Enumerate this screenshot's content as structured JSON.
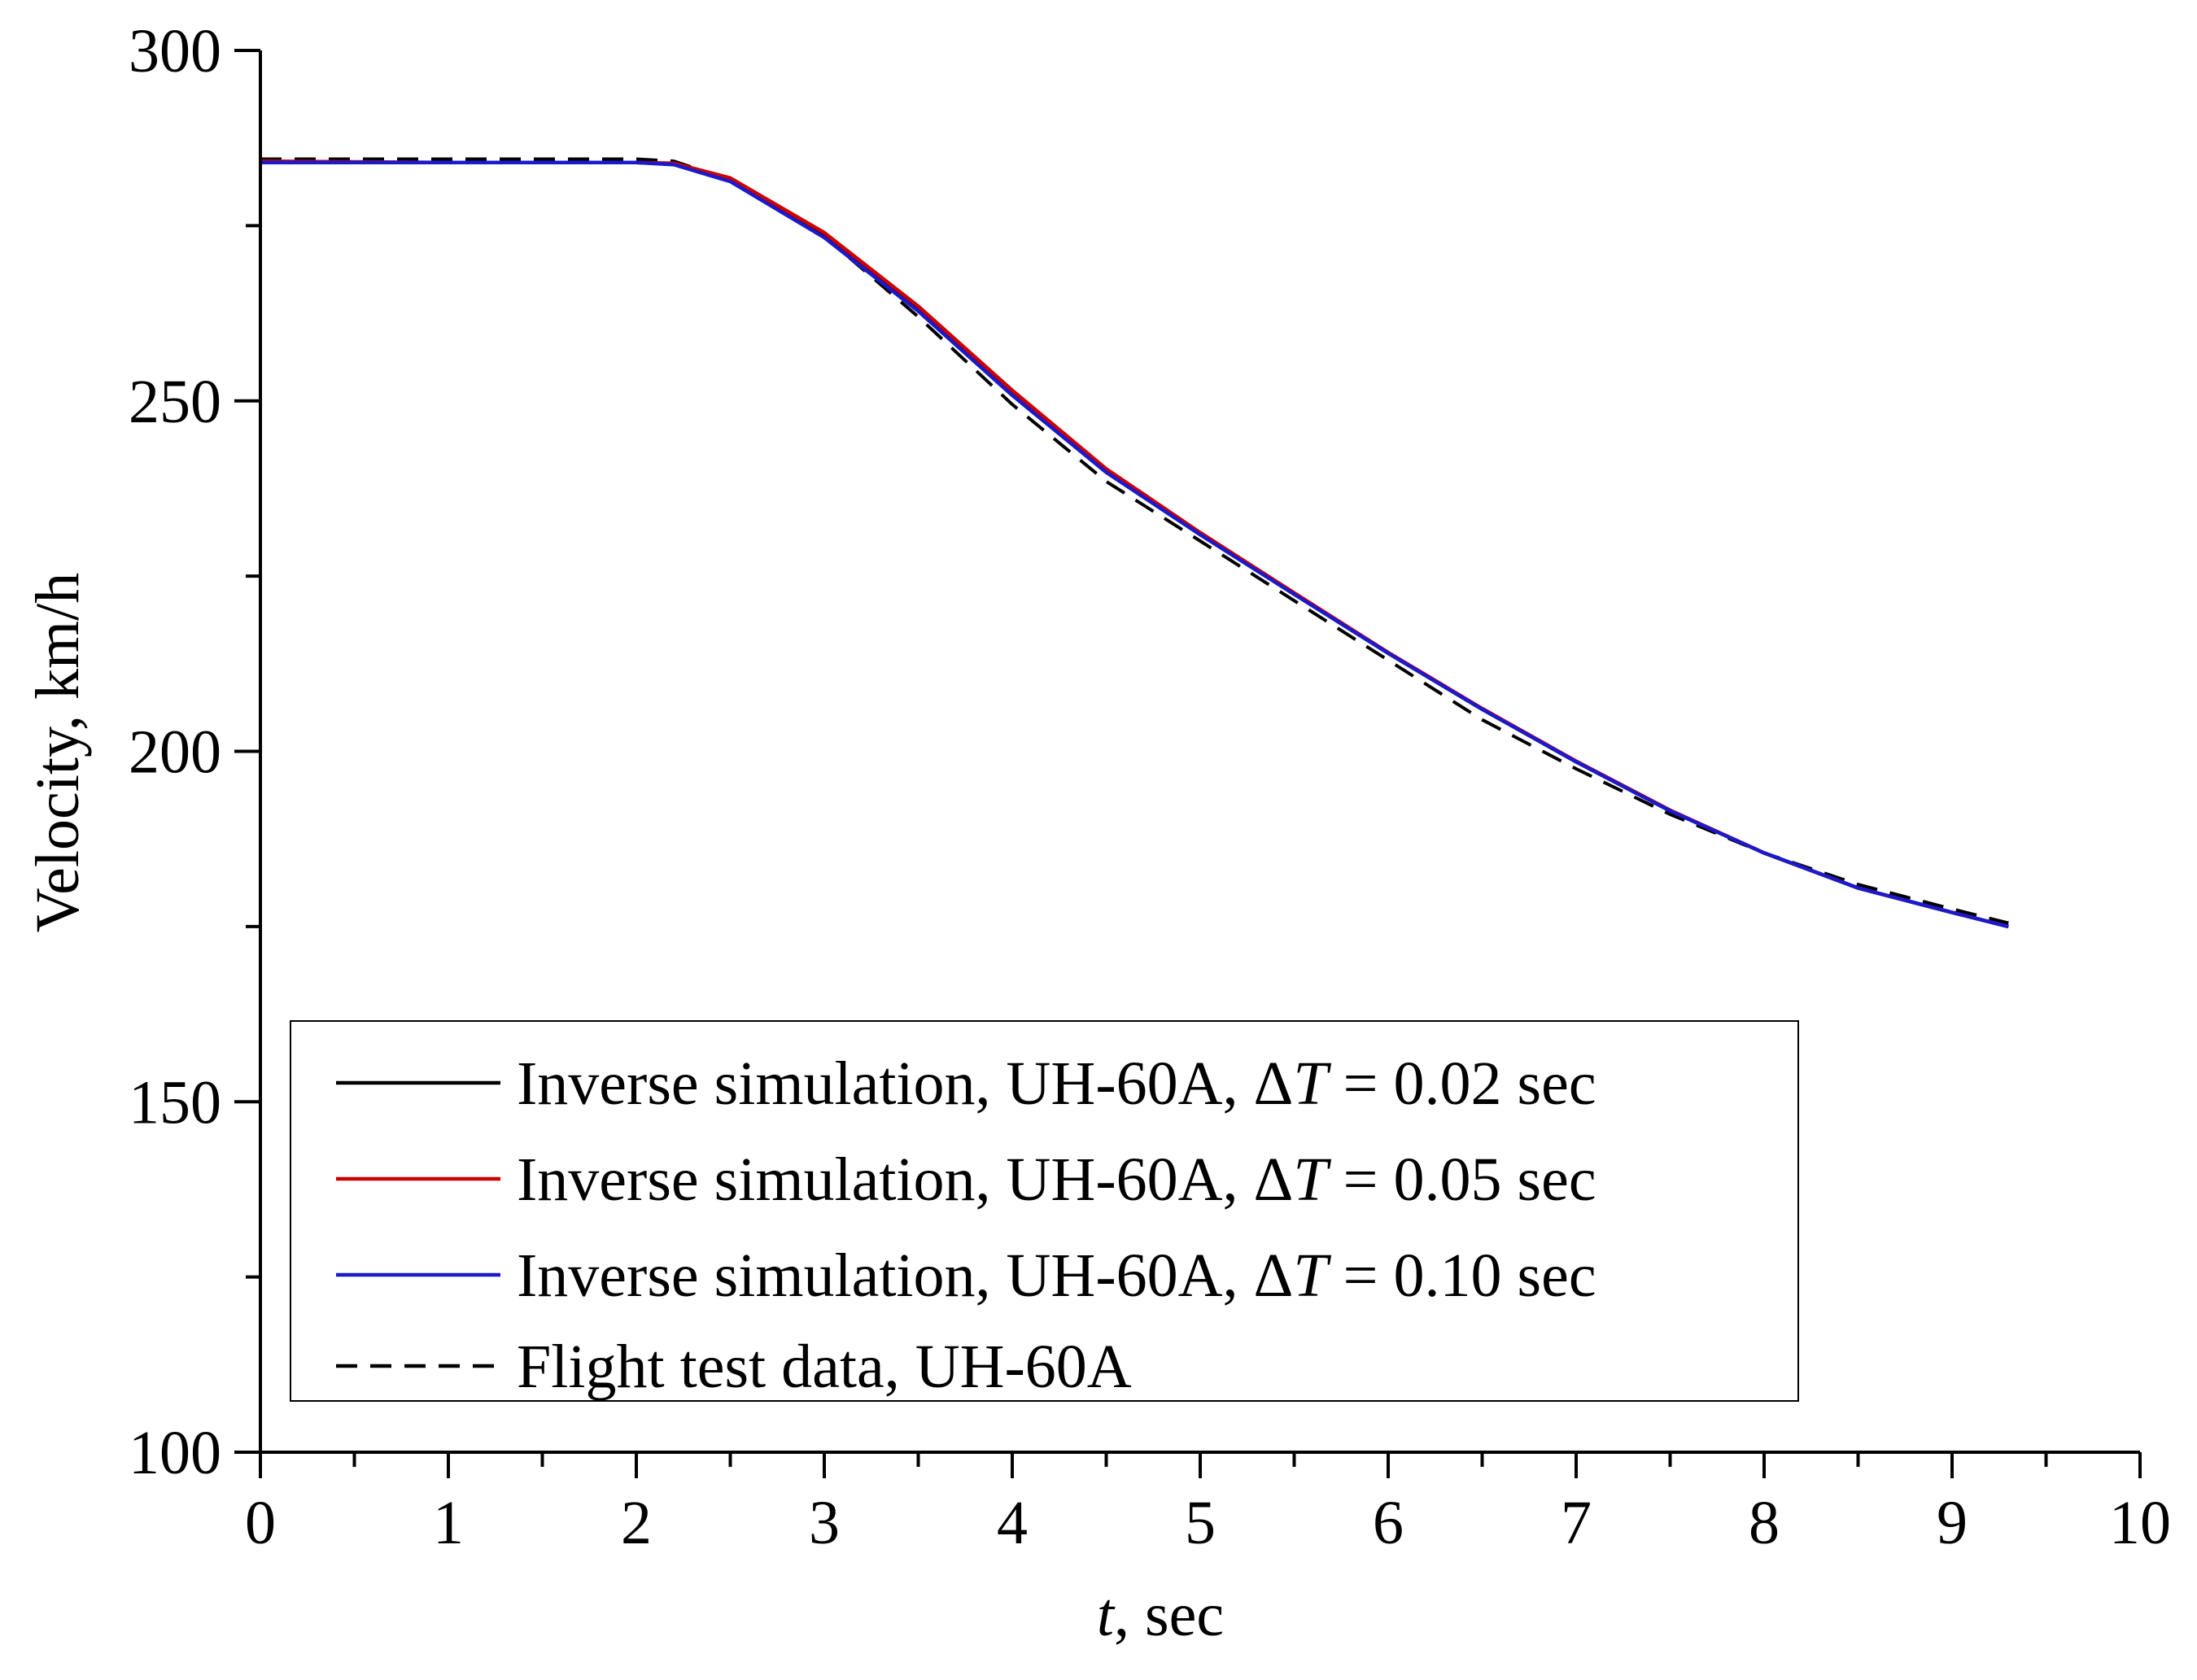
{
  "chart_data": {
    "type": "line",
    "title": "",
    "xlabel": "t",
    "xlabel_suffix": ", sec",
    "ylabel": "Velocity, km/h",
    "xlim": [
      0,
      10
    ],
    "ylim": [
      100,
      300
    ],
    "x_major_ticks": [
      0,
      1,
      2,
      3,
      4,
      5,
      6,
      7,
      8,
      9,
      10
    ],
    "x_tick_labels": [
      "0",
      "1",
      "2",
      "3",
      "4",
      "5",
      "6",
      "7",
      "8",
      "9",
      "10"
    ],
    "y_major_ticks": [
      100,
      150,
      200,
      250,
      300
    ],
    "y_tick_labels": [
      "100",
      "150",
      "200",
      "250",
      "300"
    ],
    "y_minor_ticks": [
      125,
      175,
      225,
      275
    ],
    "grid": false,
    "legend_position": "bottom-left",
    "legend": [
      {
        "prefix": "Inverse simulation, UH-60A, Δ",
        "symbol": "T",
        "suffix": " = 0.02 sec",
        "color": "#000000",
        "dash": "solid"
      },
      {
        "prefix": "Inverse simulation, UH-60A, Δ",
        "symbol": "T",
        "suffix": " = 0.05 sec",
        "color": "#cc0000",
        "dash": "solid"
      },
      {
        "prefix": "Inverse simulation, UH-60A, Δ",
        "symbol": "T",
        "suffix": " = 0.10 sec",
        "color": "#1a1acc",
        "dash": "solid"
      },
      {
        "prefix": "Flight test data, UH-60A",
        "symbol": "",
        "suffix": "",
        "color": "#000000",
        "dash": "dashed"
      }
    ],
    "series": [
      {
        "name": "Inverse simulation, UH-60A, ΔT = 0.02 sec",
        "color": "#000000",
        "dash": "solid",
        "x": [
          0,
          0.5,
          1.0,
          1.5,
          2.0,
          2.2,
          2.5,
          3.0,
          3.5,
          4.0,
          4.5,
          5.0,
          5.5,
          6.0,
          6.5,
          7.0,
          7.5,
          8.0,
          8.5,
          9.0,
          9.3
        ],
        "y": [
          284,
          284,
          284,
          284,
          284,
          283.8,
          281.5,
          273.5,
          263,
          251,
          240,
          231,
          222.5,
          214,
          206,
          198.5,
          191.5,
          185.5,
          180.5,
          177,
          175
        ]
      },
      {
        "name": "Inverse simulation, UH-60A, ΔT = 0.05 sec",
        "color": "#cc0000",
        "dash": "solid",
        "x": [
          0,
          0.5,
          1.0,
          1.5,
          2.0,
          2.2,
          2.5,
          3.0,
          3.5,
          4.0,
          4.5,
          5.0,
          5.5,
          6.0,
          6.5,
          7.0,
          7.5,
          8.0,
          8.5,
          9.0,
          9.3
        ],
        "y": [
          284.2,
          284.1,
          284,
          284,
          284,
          283.9,
          281.8,
          274,
          263.5,
          251.5,
          240.3,
          231.2,
          222.6,
          214.1,
          206.1,
          198.6,
          191.6,
          185.5,
          180.5,
          177,
          175
        ]
      },
      {
        "name": "Inverse simulation, UH-60A, ΔT = 0.10 sec",
        "color": "#1a1acc",
        "dash": "solid",
        "x": [
          0,
          0.5,
          1.0,
          1.5,
          2.0,
          2.2,
          2.5,
          3.0,
          3.5,
          4.0,
          4.5,
          5.0,
          5.5,
          6.0,
          6.5,
          7.0,
          7.5,
          8.0,
          8.5,
          9.0,
          9.3
        ],
        "y": [
          284,
          284,
          284,
          284,
          284,
          283.7,
          281.3,
          273.3,
          262.8,
          250.8,
          239.8,
          230.9,
          222.4,
          214,
          206,
          198.5,
          191.5,
          185.5,
          180.5,
          177,
          175
        ]
      },
      {
        "name": "Flight test data, UH-60A",
        "color": "#000000",
        "dash": "dashed",
        "x": [
          0,
          0.5,
          1.0,
          1.5,
          2.0,
          2.2,
          2.5,
          3.0,
          3.5,
          4.0,
          4.5,
          5.0,
          5.5,
          6.0,
          6.5,
          7.0,
          7.5,
          8.0,
          8.5,
          9.0,
          9.3
        ],
        "y": [
          284.5,
          284.5,
          284.5,
          284.5,
          284.5,
          284.2,
          281.5,
          273.5,
          262,
          249.5,
          238.5,
          230,
          221.5,
          213,
          204.5,
          197.5,
          191,
          185.5,
          181,
          177.5,
          175.5
        ]
      }
    ]
  }
}
